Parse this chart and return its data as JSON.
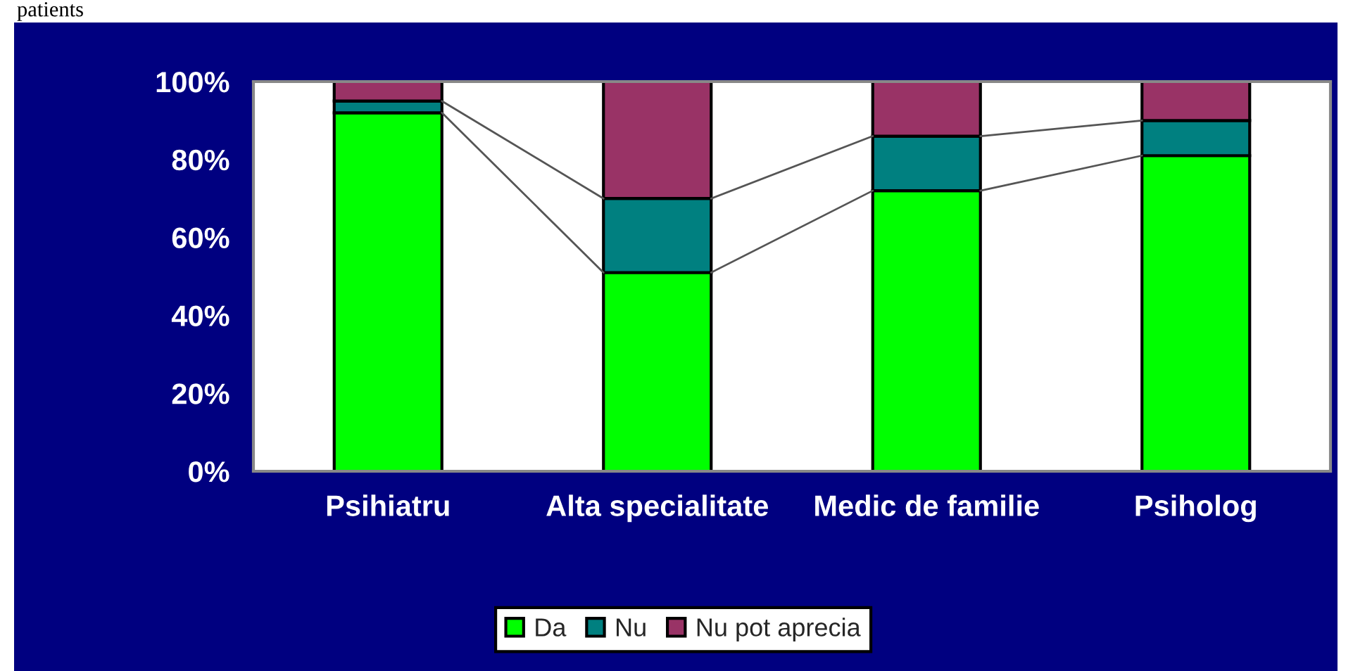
{
  "chart_data": {
    "type": "bar",
    "stacked": true,
    "categories": [
      "Psihiatru",
      "Alta specialitate",
      "Medic de familie",
      "Psiholog"
    ],
    "series": [
      {
        "name": "Da",
        "color": "#00ff00",
        "values": [
          92,
          51,
          72,
          81
        ]
      },
      {
        "name": "Nu",
        "color": "#008080",
        "values": [
          3,
          19,
          14,
          9
        ]
      },
      {
        "name": "Nu pot aprecia",
        "color": "#993366",
        "values": [
          5,
          30,
          14,
          10
        ]
      }
    ],
    "ylim": [
      0,
      100
    ],
    "yticks": [
      {
        "value": 0,
        "label": "0%"
      },
      {
        "value": 20,
        "label": "20%"
      },
      {
        "value": 40,
        "label": "40%"
      },
      {
        "value": 60,
        "label": "60%"
      },
      {
        "value": 80,
        "label": "80%"
      },
      {
        "value": 100,
        "label": "100%"
      }
    ],
    "grid": false,
    "legend": "bottom",
    "annotations": [
      "patients"
    ]
  }
}
